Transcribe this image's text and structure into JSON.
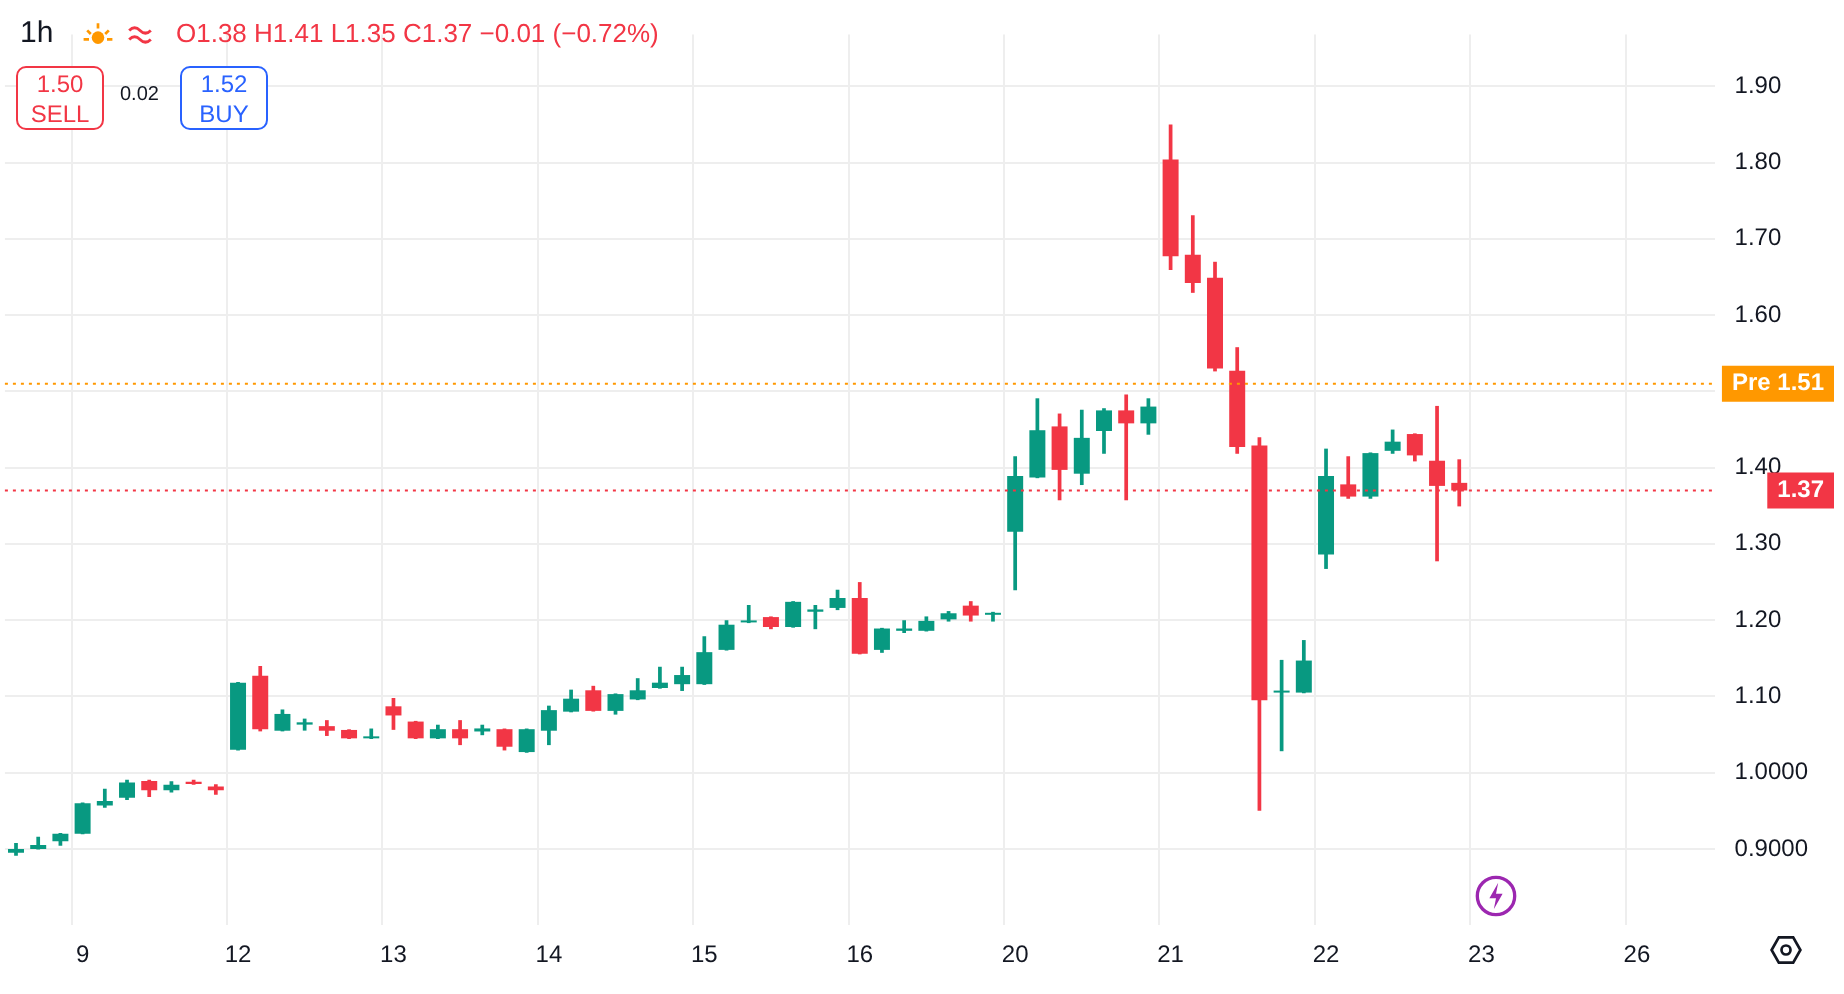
{
  "chart_data": {
    "type": "candlestick",
    "title": "1h",
    "annotations": [
      "O1.38 H1.41 L1.35 C1.37 −0.01 (−0.72%)",
      "1.50 SELL",
      "0.02",
      "1.52 BUY"
    ],
    "categories": [
      null,
      null,
      null,
      "9",
      null,
      null,
      null,
      null,
      null,
      null,
      "12",
      null,
      null,
      null,
      null,
      null,
      null,
      "13",
      null,
      null,
      null,
      null,
      null,
      null,
      "14",
      null,
      null,
      null,
      null,
      null,
      null,
      "15",
      null,
      null,
      null,
      null,
      null,
      null,
      "16",
      null,
      null,
      null,
      null,
      null,
      null,
      "20",
      null,
      null,
      null,
      null,
      null,
      null,
      "21",
      null,
      null,
      null,
      null,
      null,
      null,
      "22",
      null,
      null,
      null,
      null,
      null,
      null,
      "23",
      null,
      null,
      null,
      null,
      null,
      null,
      "26",
      null,
      null,
      null
    ],
    "ohlc": [
      [
        0.895,
        0.907,
        0.892,
        0.9
      ],
      [
        0.9,
        0.915,
        0.9,
        0.905
      ],
      [
        0.91,
        0.92,
        0.905,
        0.92
      ],
      [
        0.92,
        0.96,
        0.92,
        0.96
      ],
      [
        0.957,
        0.978,
        0.955,
        0.963
      ],
      [
        0.967,
        0.99,
        0.965,
        0.987
      ],
      [
        0.989,
        0.99,
        0.969,
        0.977
      ],
      [
        0.977,
        0.988,
        0.975,
        0.984
      ],
      [
        0.988,
        0.99,
        0.985,
        0.985
      ],
      [
        0.982,
        0.984,
        0.972,
        0.977
      ],
      [
        1.03,
        1.118,
        1.03,
        1.118
      ],
      [
        1.127,
        1.139,
        1.055,
        1.057
      ],
      [
        1.055,
        1.082,
        1.055,
        1.077
      ],
      [
        1.063,
        1.07,
        1.056,
        1.066
      ],
      [
        1.061,
        1.068,
        1.049,
        1.055
      ],
      [
        1.056,
        1.056,
        1.045,
        1.045
      ],
      [
        1.045,
        1.057,
        1.045,
        1.047
      ],
      [
        1.087,
        1.097,
        1.057,
        1.075
      ],
      [
        1.067,
        1.067,
        1.045,
        1.045
      ],
      [
        1.045,
        1.062,
        1.045,
        1.057
      ],
      [
        1.057,
        1.068,
        1.037,
        1.045
      ],
      [
        1.054,
        1.062,
        1.05,
        1.058
      ],
      [
        1.057,
        1.057,
        1.03,
        1.034
      ],
      [
        1.027,
        1.057,
        1.027,
        1.057
      ],
      [
        1.055,
        1.087,
        1.037,
        1.082
      ],
      [
        1.08,
        1.108,
        1.08,
        1.097
      ],
      [
        1.108,
        1.113,
        1.081,
        1.081
      ],
      [
        1.081,
        1.103,
        1.077,
        1.103
      ],
      [
        1.096,
        1.123,
        1.096,
        1.108
      ],
      [
        1.111,
        1.138,
        1.111,
        1.118
      ],
      [
        1.116,
        1.138,
        1.108,
        1.128
      ],
      [
        1.116,
        1.178,
        1.116,
        1.158
      ],
      [
        1.161,
        1.199,
        1.161,
        1.194
      ],
      [
        1.197,
        1.219,
        1.197,
        1.199
      ],
      [
        1.204,
        1.204,
        1.189,
        1.191
      ],
      [
        1.191,
        1.224,
        1.191,
        1.224
      ],
      [
        1.211,
        1.219,
        1.189,
        1.214
      ],
      [
        1.216,
        1.239,
        1.214,
        1.229
      ],
      [
        1.229,
        1.249,
        1.156,
        1.156
      ],
      [
        1.161,
        1.189,
        1.158,
        1.189
      ],
      [
        1.186,
        1.199,
        1.184,
        1.189
      ],
      [
        1.186,
        1.204,
        1.186,
        1.199
      ],
      [
        1.201,
        1.211,
        1.199,
        1.209
      ],
      [
        1.219,
        1.224,
        1.199,
        1.206
      ],
      [
        1.207,
        1.21,
        1.199,
        1.209
      ],
      [
        1.316,
        1.414,
        1.24,
        1.389
      ],
      [
        1.387,
        1.49,
        1.387,
        1.449
      ],
      [
        1.454,
        1.47,
        1.358,
        1.397
      ],
      [
        1.392,
        1.475,
        1.378,
        1.439
      ],
      [
        1.448,
        1.477,
        1.419,
        1.475
      ],
      [
        1.475,
        1.495,
        1.358,
        1.458
      ],
      [
        1.458,
        1.49,
        1.444,
        1.48
      ],
      [
        1.804,
        1.849,
        1.66,
        1.677
      ],
      [
        1.679,
        1.73,
        1.63,
        1.642
      ],
      [
        1.649,
        1.669,
        1.527,
        1.53
      ],
      [
        1.527,
        1.557,
        1.419,
        1.427
      ],
      [
        1.429,
        1.439,
        0.951,
        1.095
      ],
      [
        1.105,
        1.147,
        1.029,
        1.107
      ],
      [
        1.105,
        1.173,
        1.105,
        1.147
      ],
      [
        1.286,
        1.424,
        1.268,
        1.389
      ],
      [
        1.378,
        1.414,
        1.36,
        1.362
      ],
      [
        1.362,
        1.419,
        1.36,
        1.419
      ],
      [
        1.422,
        1.449,
        1.419,
        1.434
      ],
      [
        1.444,
        1.444,
        1.409,
        1.416
      ],
      [
        1.409,
        1.48,
        1.278,
        1.376
      ],
      [
        1.38,
        1.41,
        1.35,
        1.37
      ],
      null,
      null,
      null,
      null,
      null,
      null,
      null,
      null,
      null,
      null,
      null
    ],
    "ylim": [
      0.8,
      1.968
    ],
    "yticks": [
      {
        "value": 0.9,
        "label": "0.9000"
      },
      {
        "value": 1.0,
        "label": "1.0000"
      },
      {
        "value": 1.1,
        "label": "1.10"
      },
      {
        "value": 1.2,
        "label": "1.20"
      },
      {
        "value": 1.3,
        "label": "1.30"
      },
      {
        "value": 1.4,
        "label": "1.40"
      },
      {
        "value": 1.5,
        "label": null
      },
      {
        "value": 1.6,
        "label": "1.60"
      },
      {
        "value": 1.7,
        "label": "1.70"
      },
      {
        "value": 1.8,
        "label": "1.80"
      },
      {
        "value": 1.9,
        "label": "1.90"
      }
    ],
    "ref_lines": [
      {
        "axis": "y",
        "value": 1.51,
        "label": "Pre 1.51",
        "color": "#ff9800",
        "line_style": "dotted"
      },
      {
        "axis": "y",
        "value": 1.37,
        "label": "1.37",
        "color": "#f23645",
        "line_style": "dotted"
      }
    ],
    "grid": true,
    "legend": false
  }
}
